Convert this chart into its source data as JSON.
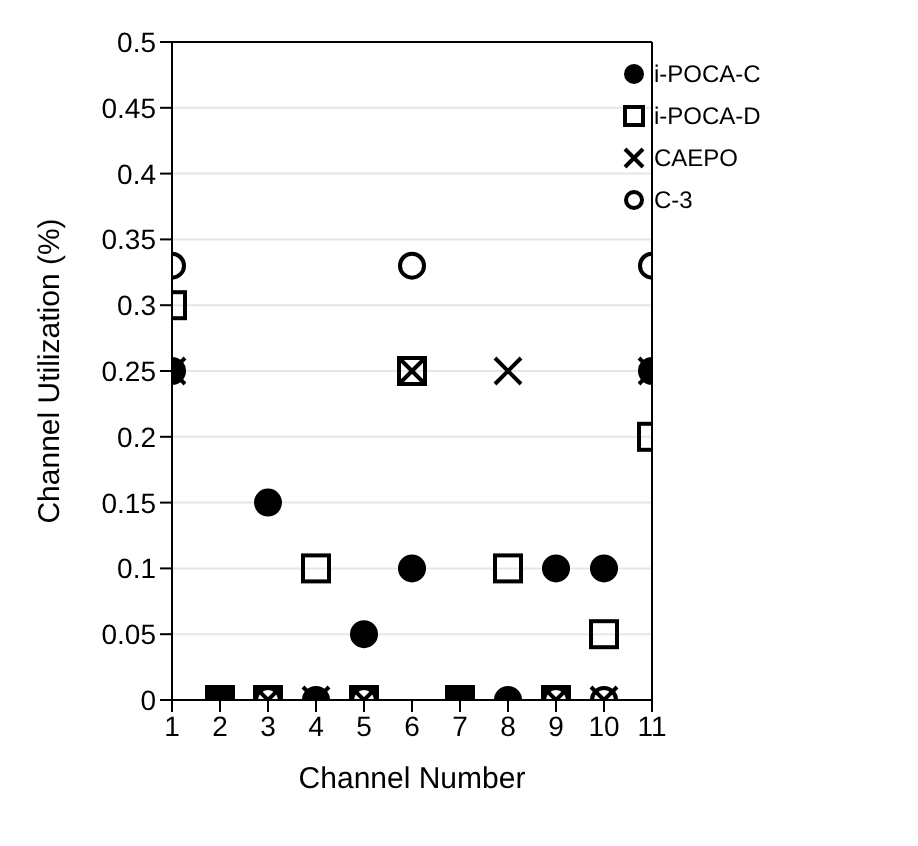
{
  "chart_data": {
    "type": "scatter",
    "xlabel": "Channel Number",
    "ylabel": "Channel Utilization (%)",
    "x": [
      1,
      2,
      3,
      4,
      5,
      6,
      7,
      8,
      9,
      10,
      11
    ],
    "xlim": [
      1,
      11
    ],
    "xticks": [
      1,
      2,
      3,
      4,
      5,
      6,
      7,
      8,
      9,
      10,
      11
    ],
    "ylim": [
      0,
      0.5
    ],
    "yticks": [
      0,
      0.05,
      0.1,
      0.15,
      0.2,
      0.25,
      0.3,
      0.35,
      0.4,
      0.45,
      0.5
    ],
    "grid": "y",
    "legend": "top right",
    "series": [
      {
        "name": "i-POCA-C",
        "color": "#000000",
        "marker": "circle",
        "values": [
          0.25,
          0,
          0.15,
          0,
          0.05,
          0.1,
          0,
          0,
          0.1,
          0.1,
          0.25
        ]
      },
      {
        "name": "i-POCA-D",
        "color": "#000000",
        "marker": "square",
        "values": [
          0.3,
          0,
          0,
          0.1,
          0,
          0.25,
          0,
          0.1,
          0,
          0.05,
          0.2
        ]
      },
      {
        "name": "CAEPO",
        "color": "#000000",
        "marker": "cross",
        "values": [
          0.25,
          0,
          0,
          0,
          0,
          0.25,
          0,
          0.25,
          0,
          0,
          0.25
        ]
      },
      {
        "name": "C-3",
        "color": "#000000",
        "marker": "circle",
        "values": [
          0.33,
          null,
          0,
          null,
          0,
          0.33,
          null,
          null,
          0,
          0,
          0.33
        ]
      }
    ]
  }
}
